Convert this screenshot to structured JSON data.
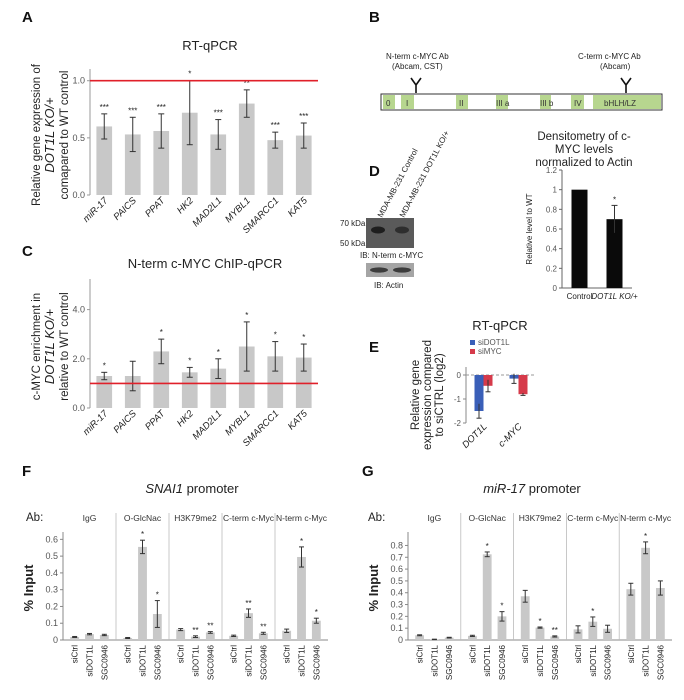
{
  "panel_letters": {
    "A": "A",
    "B": "B",
    "C": "C",
    "D": "D",
    "E": "E",
    "F": "F",
    "G": "G"
  },
  "colors": {
    "bar": "#c8c8c8",
    "red_line": "#e0202a",
    "sidot1l": "#3a5fb8",
    "simyc": "#d63a4a",
    "black_bar": "#0a0a0a",
    "domain": "#b7d68f"
  },
  "chart_data": [
    {
      "id": "A",
      "type": "bar",
      "title": "RT-qPCR",
      "ylabel_lines": [
        "Relative gene expression of",
        "DOT1L KO/+",
        "comapared to WT control"
      ],
      "categories": [
        "miR-17",
        "PAICS",
        "PPAT",
        "HK2",
        "MAD2L1",
        "MYBL1",
        "SMARCC1",
        "KAT5"
      ],
      "values": [
        0.6,
        0.53,
        0.56,
        0.72,
        0.53,
        0.8,
        0.48,
        0.52
      ],
      "errors": [
        0.11,
        0.15,
        0.15,
        0.28,
        0.13,
        0.12,
        0.07,
        0.11
      ],
      "significance": [
        "***",
        "***",
        "***",
        "*",
        "***",
        "**",
        "***",
        "***"
      ],
      "ylim": [
        0,
        1.05
      ],
      "yticks": [
        "0.0",
        "0.5",
        "1.0"
      ],
      "reference_line": 1.0
    },
    {
      "id": "C",
      "type": "bar",
      "title": "N-term c-MYC ChIP-qPCR",
      "ylabel_lines": [
        "c-MYC enrichment in",
        "DOT1L KO/+",
        "relative to WT control"
      ],
      "categories": [
        "miR-17",
        "PAICS",
        "PPAT",
        "HK2",
        "MAD2L1",
        "MYBL1",
        "SMARCC1",
        "KAT5"
      ],
      "values": [
        1.3,
        1.3,
        2.3,
        1.45,
        1.6,
        2.5,
        2.1,
        2.05
      ],
      "errors": [
        0.15,
        0.6,
        0.5,
        0.2,
        0.4,
        1.0,
        0.6,
        0.55
      ],
      "significance": [
        "*",
        "",
        "*",
        "*",
        "*",
        "*",
        "*",
        "*"
      ],
      "ylim": [
        0,
        5.0
      ],
      "yticks": [
        "0.0",
        "2.0",
        "4.0"
      ],
      "reference_line": 1.0
    },
    {
      "id": "D",
      "type": "bar",
      "title_lines": [
        "Densitometry of c-",
        "MYC levels",
        "normalized to Actin"
      ],
      "ylabel": "Relative level to WT",
      "categories": [
        "Control",
        "DOT1L KO/+"
      ],
      "values": [
        1.0,
        0.7
      ],
      "errors": [
        0,
        0.14
      ],
      "significance": [
        "",
        "*"
      ],
      "ylim": [
        0,
        1.2
      ],
      "yticks": [
        "0",
        "0.2",
        "0.4",
        "0.6",
        "0.8",
        "1",
        "1.2"
      ]
    },
    {
      "id": "E",
      "type": "bar",
      "title": "RT-qPCR",
      "ylabel_lines": [
        "Relative gene",
        "expression compared",
        "to siCTRL (log2)"
      ],
      "categories": [
        "DOT1L",
        "c-MYC"
      ],
      "series": [
        {
          "name": "siDOT1L",
          "values": [
            -1.5,
            -0.15
          ],
          "errors": [
            0.3,
            0.2
          ]
        },
        {
          "name": "siMYC",
          "values": [
            -0.45,
            -0.8
          ],
          "errors": [
            0.25,
            0.05
          ]
        }
      ],
      "ylim": [
        -2,
        0
      ],
      "yticks": [
        "0",
        "-1",
        "-2"
      ]
    },
    {
      "id": "F",
      "type": "bar",
      "title": "SNAI1",
      "title_suffix": " promoter",
      "ylabel": "% Input",
      "ab_label": "Ab:",
      "groups": [
        "IgG",
        "O-GlcNac",
        "H3K79me2",
        "C-term c-Myc",
        "N-term c-Myc"
      ],
      "categories": [
        "siCtrl",
        "siDOT1L",
        "SGC0946"
      ],
      "values": [
        [
          0.018,
          0.035,
          0.03
        ],
        [
          0.012,
          0.555,
          0.155
        ],
        [
          0.062,
          0.02,
          0.045
        ],
        [
          0.025,
          0.16,
          0.04
        ],
        [
          0.055,
          0.495,
          0.115
        ]
      ],
      "errors": [
        [
          0.003,
          0.004,
          0.004
        ],
        [
          0.003,
          0.04,
          0.08
        ],
        [
          0.006,
          0.005,
          0.005
        ],
        [
          0.004,
          0.025,
          0.006
        ],
        [
          0.01,
          0.06,
          0.015
        ]
      ],
      "significance": [
        [
          "",
          "",
          ""
        ],
        [
          "",
          "*",
          "*"
        ],
        [
          "",
          "**",
          "**"
        ],
        [
          "",
          "**",
          "**"
        ],
        [
          "",
          "*",
          "*"
        ]
      ],
      "ylim": [
        0,
        0.62
      ],
      "yticks": [
        "0",
        "0.1",
        "0.2",
        "0.3",
        "0.4",
        "0.5",
        "0.6"
      ]
    },
    {
      "id": "G",
      "type": "bar",
      "title": "miR-17",
      "title_suffix": " promoter",
      "ylabel": "% Input",
      "ab_label": "Ab:",
      "groups": [
        "IgG",
        "O-GlcNac",
        "H3K79me2",
        "C-term c-Myc",
        "N-term c-Myc"
      ],
      "categories": [
        "siCtrl",
        "siDOT1L",
        "SGC0946"
      ],
      "values": [
        [
          0.04,
          0.005,
          0.02
        ],
        [
          0.035,
          0.725,
          0.2
        ],
        [
          0.37,
          0.105,
          0.03
        ],
        [
          0.09,
          0.155,
          0.095
        ],
        [
          0.43,
          0.78,
          0.44
        ]
      ],
      "errors": [
        [
          0.004,
          0.002,
          0.003
        ],
        [
          0.005,
          0.02,
          0.04
        ],
        [
          0.05,
          0.005,
          0.005
        ],
        [
          0.03,
          0.04,
          0.03
        ],
        [
          0.05,
          0.05,
          0.06
        ]
      ],
      "significance": [
        [
          "",
          "",
          ""
        ],
        [
          "",
          "*",
          "*"
        ],
        [
          "",
          "*",
          "**"
        ],
        [
          "",
          "*",
          ""
        ],
        [
          "",
          "*",
          ""
        ]
      ],
      "ylim": [
        0,
        0.88
      ],
      "yticks": [
        "0",
        "0.1",
        "0.2",
        "0.3",
        "0.4",
        "0.5",
        "0.6",
        "0.7",
        "0.8"
      ]
    }
  ],
  "panel_b": {
    "n_term_ab_lines": [
      "N-term c-MYC Ab",
      "(Abcam, CST)"
    ],
    "c_term_ab_lines": [
      "C-term c-MYC Ab",
      "(Abcam)"
    ],
    "domains": [
      "0",
      "I",
      "II",
      "III a",
      "III b",
      "IV",
      "bHLH/LZ"
    ]
  },
  "panel_d_blot": {
    "lane_labels": [
      "MDA-MB-231 Control",
      "MDA-MB-231 DOT1L KO/+"
    ],
    "markers": [
      "70 kDa",
      "50 kDa"
    ],
    "ib_top": "IB: N-term c-MYC",
    "ib_bottom": "IB: Actin"
  }
}
